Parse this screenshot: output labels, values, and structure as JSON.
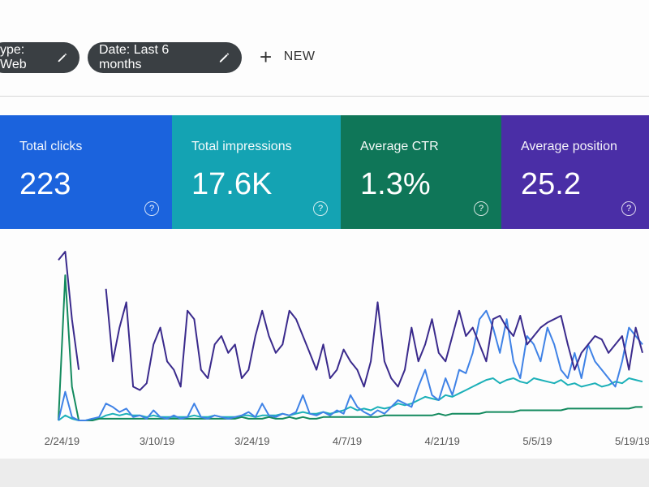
{
  "filters": [
    "ype: Web",
    "Date: Last 6 months"
  ],
  "new_button": "NEW",
  "metrics": [
    {
      "label": "Total clicks",
      "value": "223",
      "color": "#1b63dd"
    },
    {
      "label": "Total impressions",
      "value": "17.6K",
      "color": "#14a3b3"
    },
    {
      "label": "Average CTR",
      "value": "1.3%",
      "color": "#0f7658"
    },
    {
      "label": "Average position",
      "value": "25.2",
      "color": "#4a2ea6"
    }
  ],
  "chart_data": {
    "type": "line",
    "categories": [
      null,
      "2/24/19",
      null,
      null,
      null,
      null,
      null,
      null,
      null,
      null,
      null,
      null,
      null,
      null,
      null,
      "3/10/19",
      null,
      null,
      null,
      null,
      null,
      null,
      null,
      null,
      null,
      null,
      null,
      null,
      null,
      "3/24/19",
      null,
      null,
      null,
      null,
      null,
      null,
      null,
      null,
      null,
      null,
      null,
      null,
      null,
      "4/7/19",
      null,
      null,
      null,
      null,
      null,
      null,
      null,
      null,
      null,
      null,
      null,
      null,
      null,
      "4/21/19",
      null,
      null,
      null,
      null,
      null,
      null,
      null,
      null,
      null,
      null,
      null,
      null,
      null,
      "5/5/19",
      null,
      null,
      null,
      null,
      null,
      null,
      null,
      null,
      null,
      null,
      null,
      null,
      null,
      "5/19/19",
      null
    ],
    "ylim": [
      0,
      100
    ],
    "series": [
      {
        "color": "#1bb0b8",
        "values": [
          0,
          3,
          1,
          0,
          0,
          1,
          1,
          3,
          4,
          3,
          4,
          3,
          3,
          2,
          3,
          2,
          2,
          2,
          2,
          2,
          3,
          2,
          2,
          3,
          2,
          2,
          2,
          3,
          3,
          2,
          3,
          3,
          3,
          4,
          3,
          4,
          5,
          4,
          4,
          5,
          4,
          5,
          6,
          8,
          6,
          7,
          6,
          8,
          7,
          8,
          10,
          9,
          10,
          12,
          14,
          13,
          12,
          15,
          14,
          16,
          18,
          20,
          22,
          24,
          25,
          22,
          24,
          25,
          23,
          22,
          25,
          24,
          23,
          22,
          24,
          21,
          22,
          20,
          21,
          22,
          20,
          21,
          23,
          22,
          25,
          24,
          23
        ]
      },
      {
        "color": "#138a5e",
        "values": [
          0,
          86,
          20,
          0,
          0,
          0,
          1,
          1,
          1,
          1,
          1,
          1,
          1,
          1,
          1,
          1,
          1,
          1,
          1,
          1,
          1,
          1,
          1,
          1,
          1,
          1,
          1,
          2,
          1,
          1,
          1,
          2,
          1,
          1,
          2,
          1,
          2,
          1,
          1,
          2,
          2,
          2,
          2,
          2,
          2,
          2,
          2,
          2,
          3,
          3,
          3,
          3,
          3,
          3,
          3,
          3,
          4,
          3,
          4,
          4,
          4,
          4,
          4,
          5,
          5,
          5,
          5,
          5,
          6,
          6,
          6,
          6,
          6,
          6,
          6,
          7,
          7,
          7,
          7,
          7,
          7,
          7,
          7,
          7,
          7,
          8,
          8
        ]
      },
      {
        "color": "#3f82e6",
        "values": [
          0,
          17,
          2,
          0,
          0,
          1,
          2,
          10,
          8,
          5,
          7,
          2,
          3,
          1,
          6,
          2,
          1,
          3,
          1,
          2,
          10,
          2,
          1,
          3,
          2,
          1,
          2,
          3,
          5,
          2,
          10,
          3,
          2,
          4,
          3,
          5,
          15,
          4,
          3,
          5,
          3,
          6,
          4,
          15,
          8,
          5,
          3,
          6,
          4,
          8,
          12,
          10,
          8,
          20,
          30,
          15,
          12,
          25,
          15,
          30,
          28,
          40,
          60,
          65,
          55,
          40,
          60,
          35,
          25,
          50,
          45,
          35,
          55,
          45,
          30,
          25,
          40,
          25,
          45,
          35,
          30,
          25,
          20,
          35,
          55,
          50,
          45
        ]
      },
      {
        "color": "#3a2a8c",
        "values": [
          95,
          100,
          60,
          30,
          null,
          null,
          null,
          78,
          35,
          55,
          70,
          20,
          18,
          22,
          45,
          55,
          35,
          30,
          20,
          65,
          60,
          30,
          25,
          45,
          50,
          40,
          45,
          25,
          30,
          50,
          65,
          50,
          40,
          45,
          65,
          60,
          50,
          40,
          30,
          45,
          25,
          30,
          42,
          35,
          30,
          20,
          35,
          70,
          35,
          25,
          20,
          30,
          55,
          35,
          45,
          60,
          40,
          35,
          50,
          65,
          50,
          55,
          45,
          35,
          60,
          62,
          55,
          50,
          62,
          45,
          50,
          55,
          58,
          60,
          62,
          45,
          30,
          40,
          45,
          50,
          48,
          40,
          45,
          50,
          30,
          55,
          40
        ]
      }
    ]
  }
}
